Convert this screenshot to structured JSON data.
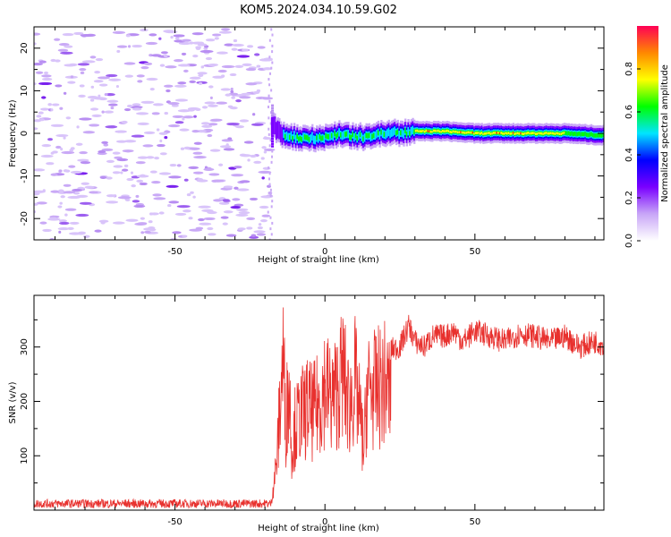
{
  "title": "KOM5.2024.034.10.59.G02",
  "chart_data": [
    {
      "type": "heatmap",
      "xlabel": "Height of straight line (km)",
      "ylabel": "Frequency (Hz)",
      "xlim": [
        -97,
        93
      ],
      "ylim": [
        -25,
        25
      ],
      "xticks": [
        -50,
        0,
        50
      ],
      "yticks": [
        -20,
        -10,
        0,
        10,
        20
      ],
      "grid": false,
      "signal_track": {
        "x": [
          -18,
          -15,
          -10,
          -5,
          0,
          5,
          10,
          15,
          20,
          25,
          30,
          40,
          50,
          60,
          70,
          80,
          93
        ],
        "freq": [
          2,
          0,
          -1,
          -1,
          -1,
          0,
          -1,
          -0.5,
          0,
          0,
          0.5,
          0.5,
          0,
          0,
          0,
          0,
          -0.5
        ]
      },
      "colorbar": {
        "label": "Normalized spectral amplitude",
        "range": [
          0,
          1
        ],
        "ticks": [
          "0.0",
          "0.2",
          "0.4",
          "0.6",
          "0.8"
        ],
        "colors": [
          "#ffffff",
          "#c8a6f7",
          "#7a00ff",
          "#0000ff",
          "#00e5ff",
          "#00ff00",
          "#ffff00",
          "#ff8800",
          "#ff0055"
        ]
      }
    },
    {
      "type": "line",
      "xlabel": "Height of straight line (km)",
      "ylabel": "SNR (v/v)",
      "xlim": [
        -97,
        93
      ],
      "ylim": [
        0,
        395
      ],
      "xticks": [
        -50,
        0,
        50
      ],
      "yticks": [
        100,
        200,
        300
      ],
      "color": "#e8312e",
      "series": [
        {
          "x": [
            -97,
            -20,
            -18,
            -16,
            -15,
            -14,
            -13,
            -12,
            -11,
            -10,
            -8,
            -6,
            -4,
            -2,
            0,
            2,
            4,
            6,
            8,
            10,
            12,
            13,
            14,
            16,
            18,
            20,
            22,
            25,
            28,
            30,
            33,
            36,
            40,
            43,
            46,
            50,
            55,
            60,
            65,
            70,
            75,
            80,
            85,
            90,
            93
          ],
          "y": [
            12,
            12,
            15,
            130,
            260,
            390,
            220,
            330,
            150,
            210,
            240,
            260,
            245,
            270,
            320,
            280,
            300,
            350,
            260,
            330,
            220,
            145,
            310,
            300,
            310,
            320,
            295,
            300,
            340,
            310,
            300,
            320,
            320,
            330,
            310,
            330,
            320,
            310,
            325,
            320,
            310,
            320,
            300,
            310,
            305
          ]
        }
      ]
    }
  ]
}
